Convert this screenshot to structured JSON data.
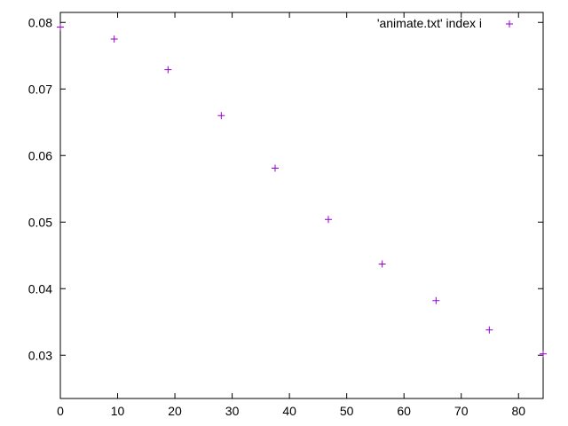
{
  "chart_data": {
    "type": "scatter",
    "title": "",
    "xlabel": "",
    "ylabel": "",
    "xlim": [
      0,
      84.3
    ],
    "ylim": [
      0.0235,
      0.0815
    ],
    "x_ticks": [
      0,
      10,
      20,
      30,
      40,
      50,
      60,
      70,
      80
    ],
    "x_tick_labels": [
      "0",
      "10",
      "20",
      "30",
      "40",
      "50",
      "60",
      "70",
      "80"
    ],
    "y_ticks": [
      0.03,
      0.04,
      0.05,
      0.06,
      0.07,
      0.08
    ],
    "y_tick_labels": [
      "0.03",
      "0.04",
      "0.05",
      "0.06",
      "0.07",
      "0.08"
    ],
    "grid": false,
    "legend_position": "top-right",
    "series": [
      {
        "name": "'animate.txt' index i",
        "color": "#9400d3",
        "marker": "plus",
        "x": [
          0,
          9.4,
          18.8,
          28.1,
          37.5,
          46.8,
          56.2,
          65.6,
          74.9,
          84.3
        ],
        "y": [
          0.0793,
          0.0775,
          0.0729,
          0.066,
          0.0581,
          0.0504,
          0.0437,
          0.0382,
          0.0338,
          0.0302
        ]
      }
    ]
  }
}
